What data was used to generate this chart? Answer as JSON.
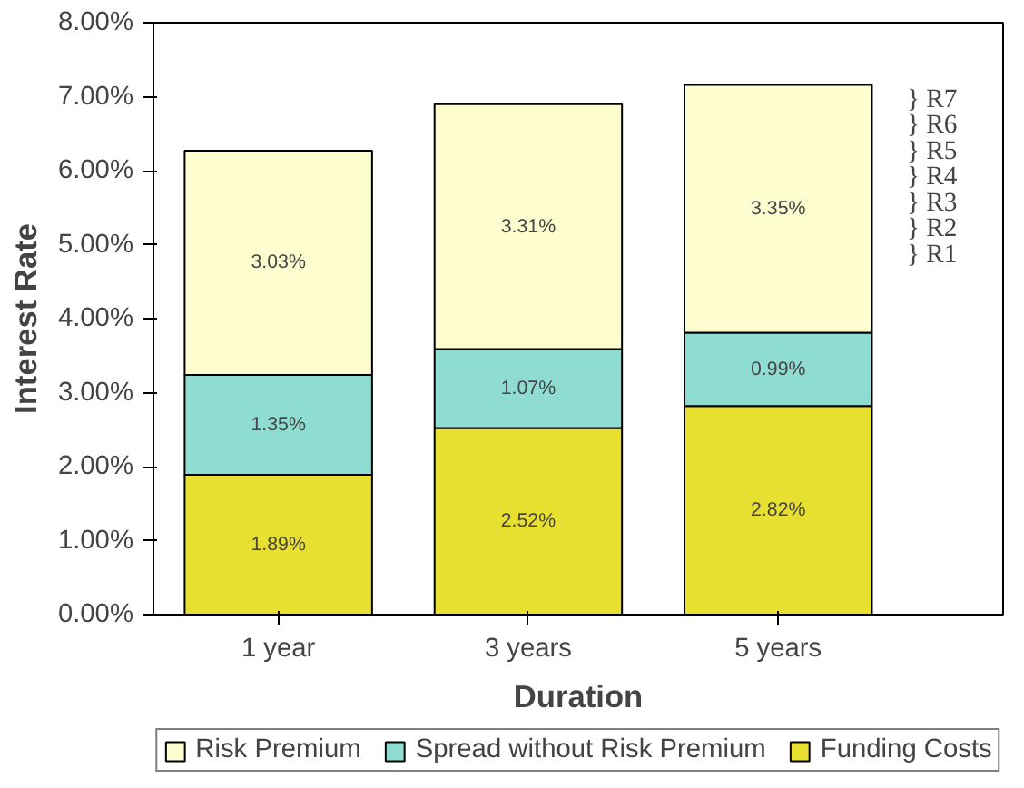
{
  "chart_data": {
    "type": "bar",
    "stacked": true,
    "xlabel": "Duration",
    "ylabel": "Interest Rate",
    "categories": [
      "1 year",
      "3 years",
      "5 years"
    ],
    "series": [
      {
        "name": "Funding Costs",
        "color": "#e8e030",
        "values": [
          1.89,
          2.52,
          2.82
        ],
        "value_labels": [
          "1.89%",
          "2.52%",
          "2.82%"
        ]
      },
      {
        "name": "Spread without Risk Premium",
        "color": "#8fdcd2",
        "values": [
          1.35,
          1.07,
          0.99
        ],
        "value_labels": [
          "1.35%",
          "1.07%",
          "0.99%"
        ]
      },
      {
        "name": "Risk Premium",
        "color": "#fdfdd0",
        "values": [
          3.03,
          3.31,
          3.35
        ],
        "value_labels": [
          "3.03%",
          "3.31%",
          "3.35%"
        ]
      }
    ],
    "ylim": [
      0,
      8
    ],
    "yticks": [
      {
        "value": 0,
        "label": "0.00%"
      },
      {
        "value": 1,
        "label": "1.00%"
      },
      {
        "value": 2,
        "label": "2.00%"
      },
      {
        "value": 3,
        "label": "3.00%"
      },
      {
        "value": 4,
        "label": "4.00%"
      },
      {
        "value": 5,
        "label": "5.00%"
      },
      {
        "value": 6,
        "label": "6.00%"
      },
      {
        "value": 7,
        "label": "7.00%"
      },
      {
        "value": 8,
        "label": "8.00%"
      }
    ],
    "grid": false,
    "legend": "bottom",
    "annotations": [
      "} R7",
      "} R6",
      "} R5",
      "} R4",
      "} R3",
      "} R2",
      "} R1"
    ]
  }
}
